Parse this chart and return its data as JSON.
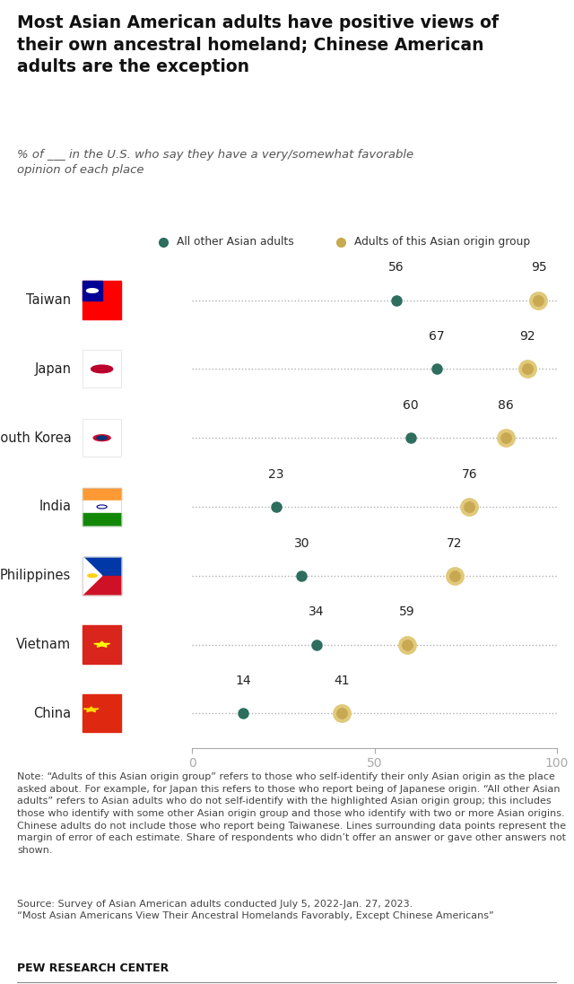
{
  "title": "Most Asian American adults have positive views of\ntheir own ancestral homeland; Chinese American\nadults are the exception",
  "subtitle": "% of ___ in the U.S. who say they have a very/somewhat favorable\nopinion of each place",
  "legend_green": "All other Asian adults",
  "legend_gold": "Adults of this Asian origin group",
  "countries": [
    "Taiwan",
    "Japan",
    "South Korea",
    "India",
    "Philippines",
    "Vietnam",
    "China"
  ],
  "green_values": [
    56,
    67,
    60,
    23,
    30,
    34,
    14
  ],
  "gold_values": [
    95,
    92,
    86,
    76,
    72,
    59,
    41
  ],
  "green_color": "#2d6e5e",
  "gold_color": "#c8a951",
  "dot_line_color": "#b0b0b0",
  "note_text": "Note: “Adults of this Asian origin group” refers to those who self-identify their only Asian origin as the place asked about. For example, for Japan this refers to those who report being of Japanese origin. “All other Asian adults” refers to Asian adults who do not self-identify with the highlighted Asian origin group; this includes those who identify with some other Asian origin group and those who identify with two or more Asian origins. Chinese adults do not include those who report being Taiwanese. Lines surrounding data points represent the margin of error of each estimate. Share of respondents who didn’t offer an answer or gave other answers not shown.",
  "source_text": "Source: Survey of Asian American adults conducted July 5, 2022-Jan. 27, 2023.\n“Most Asian Americans View Their Ancestral Homelands Favorably, Except Chinese Americans”",
  "pew_text": "PEW RESEARCH CENTER",
  "background_color": "#ffffff"
}
